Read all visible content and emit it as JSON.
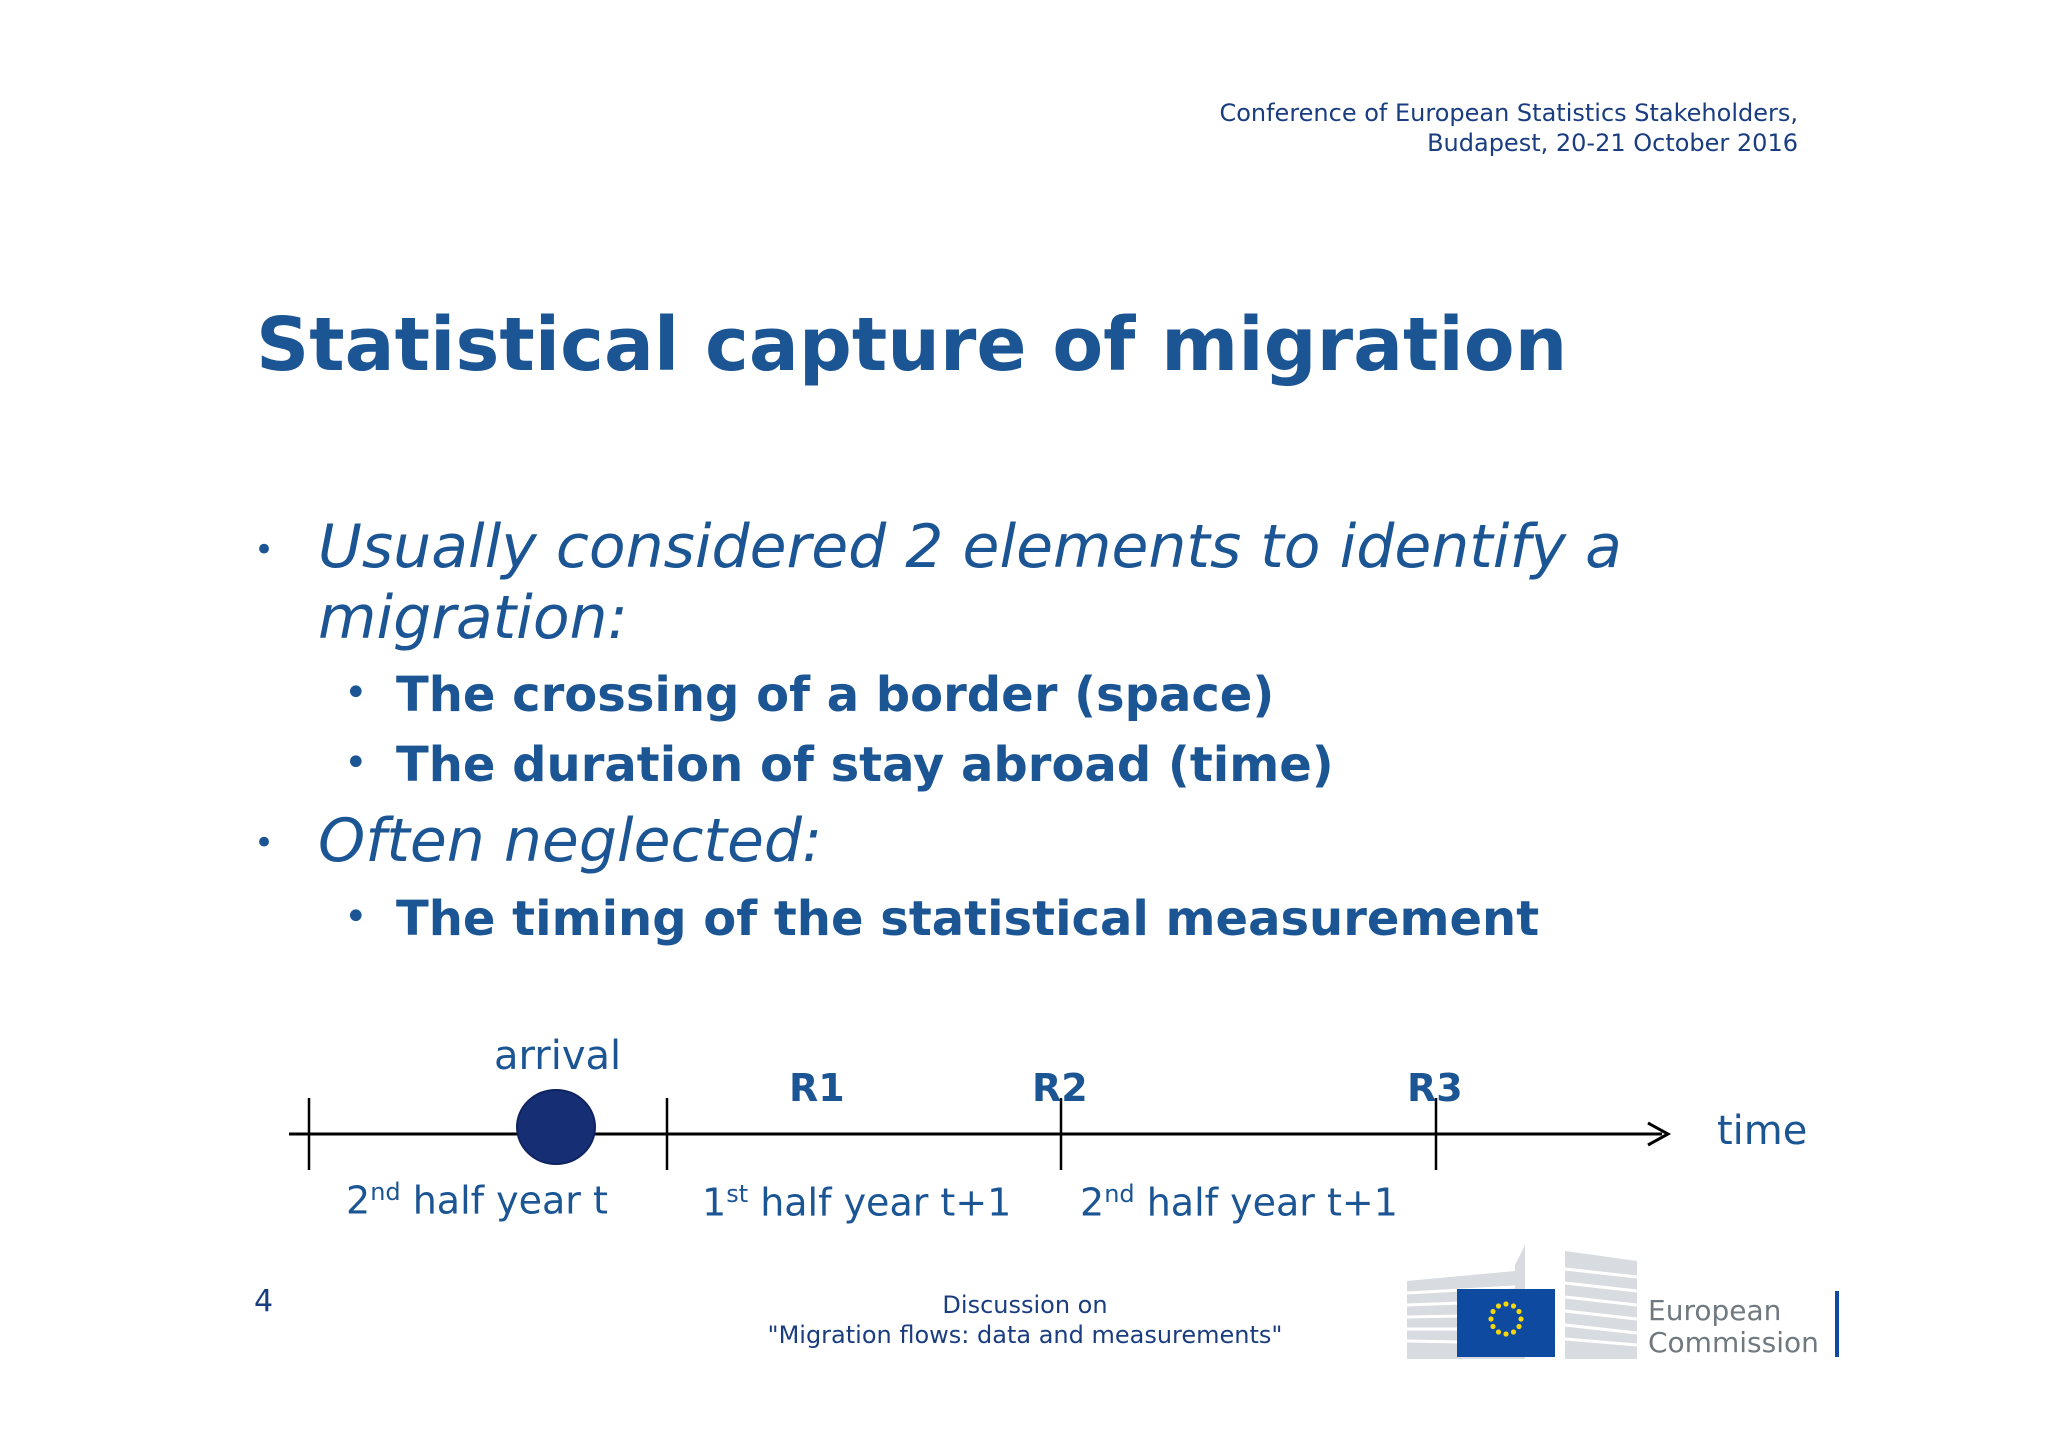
{
  "header": {
    "conference_line1": "Conference of European Statistics Stakeholders,",
    "conference_line2": "Budapest, 20-21 October 2016"
  },
  "title": "Statistical capture of migration",
  "bullets": [
    {
      "text_line1": "Usually considered 2 elements to identify a",
      "text_line2": "migration:",
      "sub": [
        "The crossing of a border (space)",
        "The duration of stay abroad (time)"
      ]
    },
    {
      "text_line1": "Often neglected:",
      "sub": [
        "The timing of the statistical measurement"
      ]
    }
  ],
  "timeline": {
    "event_label": "arrival",
    "axis_label": "time",
    "markers": [
      "R1",
      "R2",
      "R3"
    ],
    "periods": [
      {
        "num": "2",
        "sup": "nd",
        "text": " half year t"
      },
      {
        "num": "1",
        "sup": "st",
        "text": " half year t+1"
      },
      {
        "num": "2",
        "sup": "nd",
        "text": " half year t+1"
      }
    ]
  },
  "footer": {
    "page_number": "4",
    "discussion_line1": "Discussion on",
    "discussion_line2": "\"Migration flows: data and measurements\"",
    "logo_text_line1": "European",
    "logo_text_line2": "Commission"
  },
  "colors": {
    "text_blue": "#1b5594",
    "dark_navy": "#1a3d80",
    "arrival_dot": "#162f74",
    "eu_flag_blue": "#0e4aa0",
    "eu_star_yellow": "#f5d60c"
  }
}
